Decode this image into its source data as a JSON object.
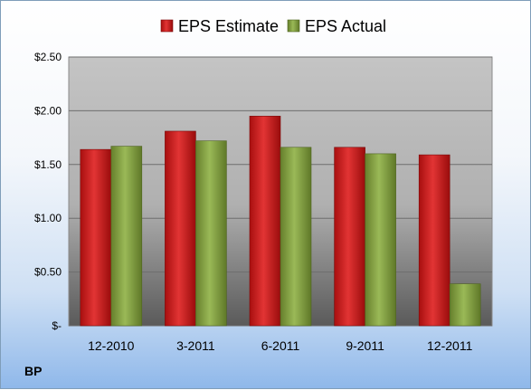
{
  "ticker": "BP",
  "chart_data": {
    "type": "bar",
    "categories": [
      "12-2010",
      "3-2011",
      "6-2011",
      "9-2011",
      "12-2011"
    ],
    "series": [
      {
        "name": "EPS Estimate",
        "values": [
          1.64,
          1.81,
          1.95,
          1.66,
          1.59
        ],
        "color": "#cc1f1f"
      },
      {
        "name": "EPS Actual",
        "values": [
          1.67,
          1.72,
          1.66,
          1.6,
          0.39
        ],
        "color": "#7f9d3c"
      }
    ],
    "y_ticks": [
      {
        "value": 0,
        "label": "$-"
      },
      {
        "value": 0.5,
        "label": "$0.50"
      },
      {
        "value": 1.0,
        "label": "$1.00"
      },
      {
        "value": 1.5,
        "label": "$1.50"
      },
      {
        "value": 2.0,
        "label": "$2.00"
      },
      {
        "value": 2.5,
        "label": "$2.50"
      }
    ],
    "ylim": [
      0,
      2.5
    ],
    "grid": true,
    "legend": "top-center"
  }
}
